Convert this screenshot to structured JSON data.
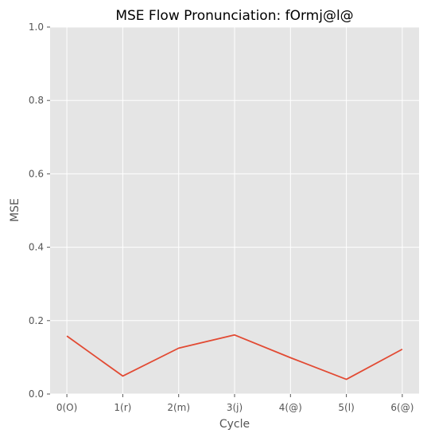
{
  "chart_data": {
    "type": "line",
    "title": "MSE Flow    Pronunciation: fOrmj@l@",
    "xlabel": "Cycle",
    "ylabel": "MSE",
    "categories": [
      "0(O)",
      "1(r)",
      "2(m)",
      "3(j)",
      "4(@)",
      "5(l)",
      "6(@)"
    ],
    "series": [
      {
        "values": [
          0.158,
          0.049,
          0.125,
          0.161,
          0.099,
          0.04,
          0.122
        ]
      }
    ],
    "ylim": [
      0.0,
      1.0
    ],
    "yticks": [
      "0.0",
      "0.2",
      "0.4",
      "0.6",
      "0.8",
      "1.0"
    ],
    "grid": true,
    "colors": {
      "background": "#E5E5E5",
      "grid": "#FFFFFF",
      "line": "#E24A33",
      "tick": "#555555"
    }
  }
}
